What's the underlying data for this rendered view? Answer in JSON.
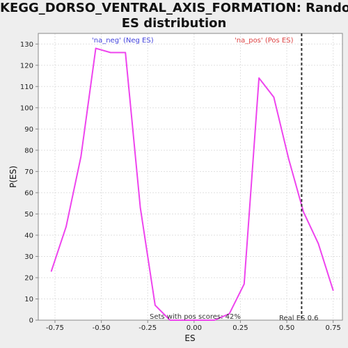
{
  "chart_data": {
    "type": "line",
    "title_lines": [
      "KEGG_DORSO_VENTRAL_AXIS_FORMATION: Random",
      "ES distribution"
    ],
    "xlabel": "ES",
    "ylabel": "P(ES)",
    "xlim": [
      -0.84,
      0.8
    ],
    "ylim": [
      0,
      135
    ],
    "x_ticks": [
      -0.75,
      -0.5,
      -0.25,
      0.0,
      0.25,
      0.5,
      0.75
    ],
    "x_tick_labels": [
      "-0.75",
      "-0.50",
      "-0.25",
      "0.00",
      "0.25",
      "0.50",
      "0.75"
    ],
    "y_ticks": [
      0,
      10,
      20,
      30,
      40,
      50,
      60,
      70,
      80,
      90,
      100,
      110,
      120,
      130
    ],
    "y_tick_labels": [
      "0",
      "10",
      "20",
      "30",
      "40",
      "50",
      "60",
      "70",
      "80",
      "90",
      "100",
      "110",
      "120",
      "130"
    ],
    "grid": true,
    "series": [
      {
        "color": "#ee44ee",
        "x": [
          -0.77,
          -0.69,
          -0.61,
          -0.53,
          -0.45,
          -0.37,
          -0.29,
          -0.21,
          -0.13,
          -0.05,
          0.03,
          0.11,
          0.19,
          0.27,
          0.35,
          0.43,
          0.51,
          0.59,
          0.67,
          0.75
        ],
        "y": [
          23,
          44,
          77,
          128,
          126,
          126,
          53,
          7,
          0,
          0,
          0,
          0,
          3,
          17,
          114,
          105,
          76,
          51,
          36,
          14
        ]
      }
    ],
    "real_es": 0.58,
    "real_es_line_color": "#333333",
    "annotations": {
      "neg_label": "'na_neg' (Neg ES)",
      "neg_color": "#4444dd",
      "pos_label": "'na_pos' (Pos ES)",
      "pos_color": "#dd4444",
      "sets_label": "Sets with pos scores: 42%",
      "real_es_label": "Real ES 0.6"
    },
    "colors": {
      "background": "#eeeeee",
      "plot_background": "#ffffff",
      "grid": "#e0e0e0",
      "axis": "#888888"
    }
  }
}
